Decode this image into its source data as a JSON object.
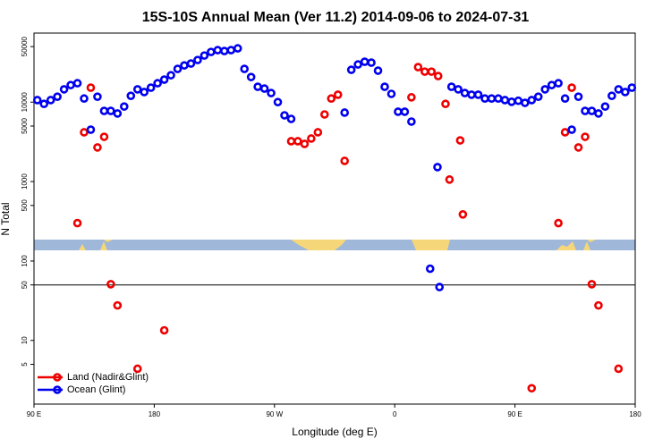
{
  "chart_data": {
    "type": "scatter",
    "title": "15S-10S Annual Mean (Ver 11.2)   2014-09-06 to 2024-07-31",
    "x_label": "Longitude (deg E)",
    "y_label": "N Total",
    "xlim": [
      90,
      540
    ],
    "xticks": [
      {
        "value": 90,
        "label": "90 E"
      },
      180,
      {
        "value": 270,
        "label": "90 W"
      },
      {
        "value": 360,
        "label": "0"
      },
      {
        "value": 450,
        "label": "90 E"
      },
      {
        "value": 540,
        "label": "180"
      }
    ],
    "ylim": [
      1.58,
      74000
    ],
    "y_scale": "log",
    "yticks": [
      5,
      10,
      50,
      100,
      500,
      1000,
      5000,
      10000,
      50000
    ],
    "hline": 50,
    "legend": "lower left",
    "series": [
      {
        "name": "Land (Nadir&Glint)",
        "color": "#ee0000",
        "x": [
          122.5,
          127.5,
          132.5,
          137.5,
          142.5,
          147.5,
          152.5,
          167.5,
          187.5,
          282.5,
          287.5,
          292.5,
          297.5,
          302.5,
          307.5,
          312.5,
          317.5,
          322.5,
          372.5,
          377.5,
          382.5,
          387.5,
          392.5,
          398,
          401,
          409,
          411,
          462.5,
          482.5,
          487.5,
          492.5,
          497.5,
          502.5,
          507.5,
          512.5,
          527.5
        ],
        "values": [
          300,
          4170,
          15200,
          2690,
          3660,
          51,
          27.6,
          4.4,
          13.4,
          3220,
          3220,
          2980,
          3480,
          4170,
          7000,
          11100,
          12400,
          1820,
          11500,
          27600,
          24200,
          24200,
          21300,
          9500,
          1060,
          3300,
          386,
          2.5,
          300,
          4170,
          15200,
          2690,
          3660,
          51,
          27.6,
          4.4
        ]
      },
      {
        "name": "Ocean (Glint)",
        "color": "#0000ee",
        "x": [
          92.5,
          97.5,
          102.5,
          107.5,
          112.5,
          117.5,
          122.5,
          127.5,
          132.5,
          137.5,
          142.5,
          147.5,
          152.5,
          157.5,
          162.5,
          167.5,
          172.5,
          177.5,
          182.5,
          187.5,
          192.5,
          197.5,
          202.5,
          207.5,
          212.5,
          217.5,
          222.5,
          227.5,
          232.5,
          237.5,
          242.5,
          247.5,
          252.5,
          257.5,
          262.5,
          267.5,
          272.5,
          277.5,
          282.5,
          322.5,
          327.5,
          332.5,
          337.5,
          342.5,
          347.5,
          352.5,
          357.5,
          362.5,
          367.5,
          372.5,
          386.5,
          392,
          393.5,
          402.5,
          407.5,
          412.5,
          417.5,
          422.5,
          427.5,
          432.5,
          437.5,
          442.5,
          447.5,
          452.5,
          457.5,
          462.5,
          467.5,
          472.5,
          477.5,
          482.5,
          487.5,
          492.5,
          497.5,
          502.5,
          507.5,
          512.5,
          517.5,
          522.5,
          527.5,
          532.5,
          537.5
        ],
        "values": [
          10600,
          9500,
          10600,
          11700,
          14500,
          16400,
          17300,
          11100,
          4500,
          11700,
          7750,
          7750,
          7200,
          8800,
          12000,
          14500,
          13400,
          15200,
          17300,
          19200,
          21800,
          26200,
          29000,
          30600,
          33900,
          38600,
          42800,
          45100,
          44000,
          45100,
          47500,
          26200,
          20700,
          15600,
          14800,
          13000,
          10000,
          6820,
          6150,
          7380,
          25500,
          29800,
          32200,
          31400,
          24900,
          15600,
          12700,
          7570,
          7570,
          5690,
          80,
          1520,
          47,
          15600,
          14500,
          13000,
          12400,
          12400,
          11100,
          11100,
          11100,
          10600,
          10100,
          10400,
          9800,
          10600,
          11700,
          14500,
          16400,
          17300,
          11100,
          4500,
          11700,
          7750,
          7750,
          7200,
          8800,
          12000,
          14500,
          13400,
          15200
        ]
      }
    ]
  }
}
